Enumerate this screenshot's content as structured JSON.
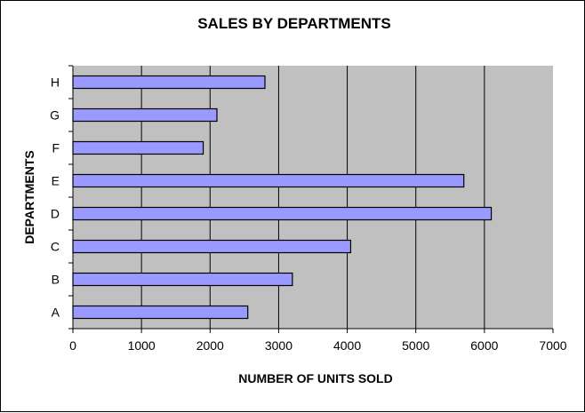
{
  "chart_data": {
    "type": "bar",
    "orientation": "horizontal",
    "title": "SALES  BY DEPARTMENTS",
    "xlabel": "NUMBER OF UNITS  SOLD",
    "ylabel": "DEPARTMENTS",
    "categories": [
      "A",
      "B",
      "C",
      "D",
      "E",
      "F",
      "G",
      "H"
    ],
    "values": [
      2550,
      3200,
      4050,
      6100,
      5700,
      1900,
      2100,
      2800
    ],
    "xlim": [
      0,
      7000
    ],
    "xticks": [
      "0",
      "1000",
      "2000",
      "3000",
      "4000",
      "5000",
      "6000",
      "7000"
    ],
    "grid": "vertical",
    "legend": "none",
    "colors": {
      "bar_fill": "#9999ff",
      "bar_stroke": "#000000",
      "plot_background": "#c0c0c0",
      "gridline": "#000000"
    }
  }
}
